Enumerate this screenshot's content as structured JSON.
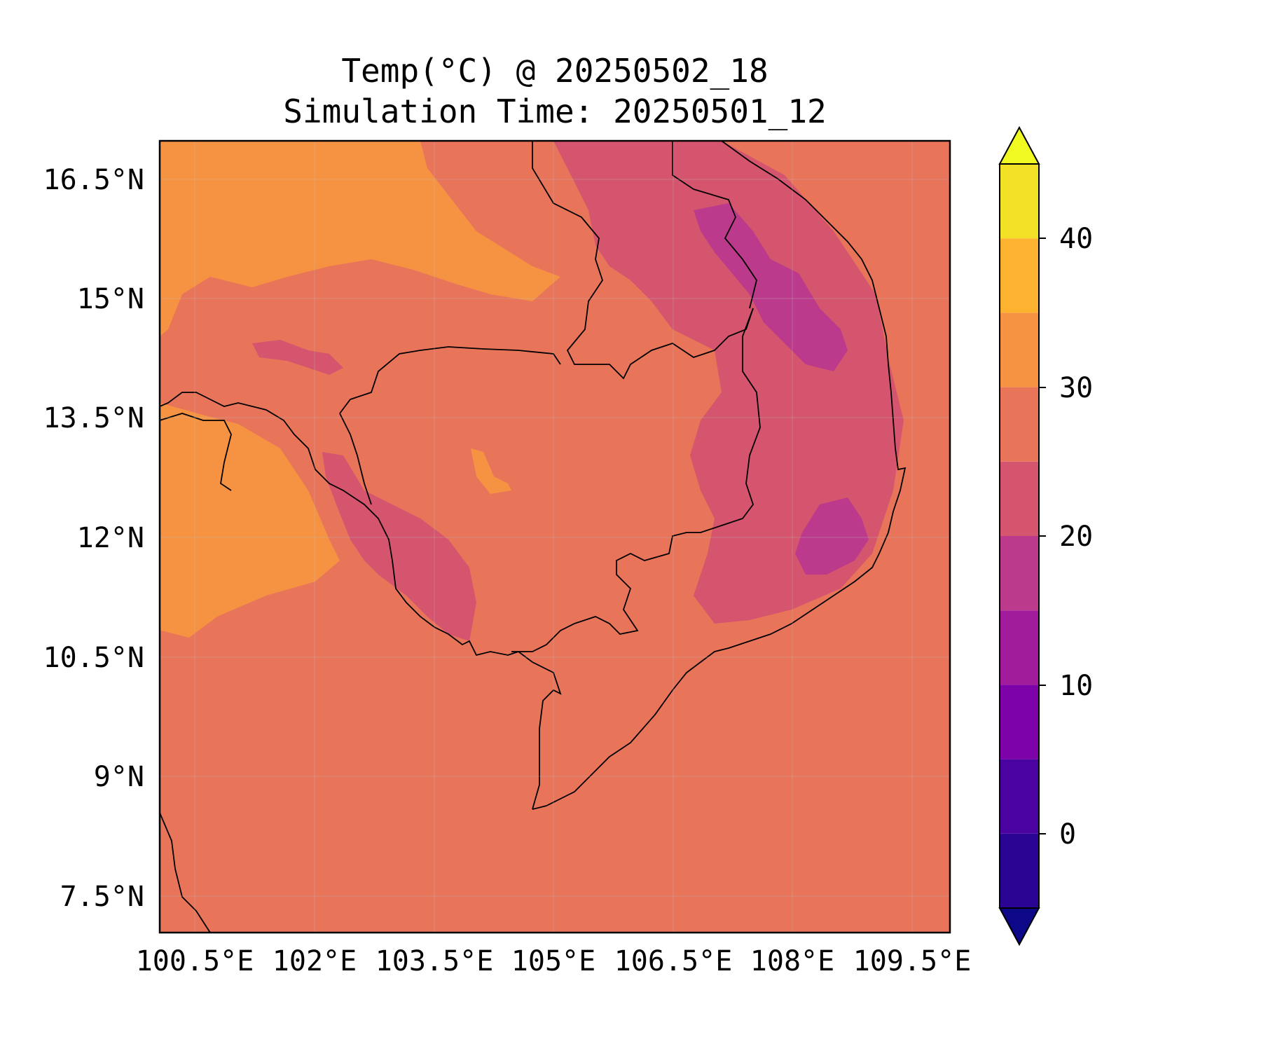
{
  "title": {
    "line1": "Temp(°C) @ 20250502_18",
    "line2": "Simulation Time: 20250501_12"
  },
  "map": {
    "lon_ticks": [
      "100.5°E",
      "102°E",
      "103.5°E",
      "105°E",
      "106.5°E",
      "108°E",
      "109.5°E"
    ],
    "lat_ticks": [
      "16.5°N",
      "15°N",
      "13.5°N",
      "12°N",
      "10.5°N",
      "9°N",
      "7.5°N"
    ],
    "colors": {
      "base_25_30": "#e8745a",
      "band_20_25": "#d5546e",
      "band_15_20": "#bb3a8b",
      "band_30_35": "#f69343",
      "coast": "#000000"
    }
  },
  "colorbar": {
    "tick_labels": [
      "40",
      "30",
      "20",
      "10",
      "0"
    ],
    "levels": [
      -5,
      0,
      5,
      10,
      15,
      20,
      25,
      30,
      35,
      40,
      45
    ],
    "colors": [
      "#2a0593",
      "#4a02a0",
      "#7d03a8",
      "#a11c9b",
      "#bb3a8b",
      "#d5546e",
      "#e8745a",
      "#f69343",
      "#fdb32f",
      "#f2e127"
    ],
    "under_color": "#0d0887",
    "over_color": "#f0f921",
    "extend": "both"
  }
}
